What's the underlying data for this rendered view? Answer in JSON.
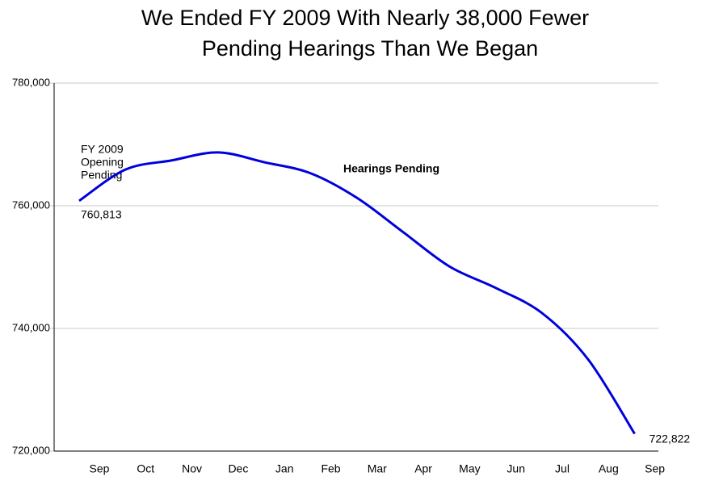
{
  "chart_data": {
    "type": "line",
    "title": [
      "We Ended FY 2009 With Nearly 38,000 Fewer",
      "Pending Hearings Than We Began"
    ],
    "categories": [
      "Sep",
      "Oct",
      "Nov",
      "Dec",
      "Jan",
      "Feb",
      "Mar",
      "Apr",
      "May",
      "Jun",
      "Jul",
      "Aug",
      "Sep"
    ],
    "series": [
      {
        "name": "Hearings Pending",
        "color": "#0000dd",
        "values": [
          760813,
          765900,
          767400,
          768700,
          767100,
          765300,
          761300,
          755700,
          750100,
          746600,
          742500,
          734900,
          722822
        ],
        "value_labels": [
          "760,813",
          null,
          null,
          null,
          null,
          null,
          null,
          null,
          null,
          null,
          null,
          null,
          "722,822"
        ]
      }
    ],
    "annotations": [
      "FY 2009",
      "Opening",
      "Pending"
    ],
    "ylim": [
      720000,
      780000
    ],
    "yticks": [
      {
        "value": 720000,
        "label": "720,000"
      },
      {
        "value": 740000,
        "label": "740,000"
      },
      {
        "value": 760000,
        "label": "760,000"
      },
      {
        "value": 780000,
        "label": "780,000"
      }
    ],
    "grid": true
  }
}
